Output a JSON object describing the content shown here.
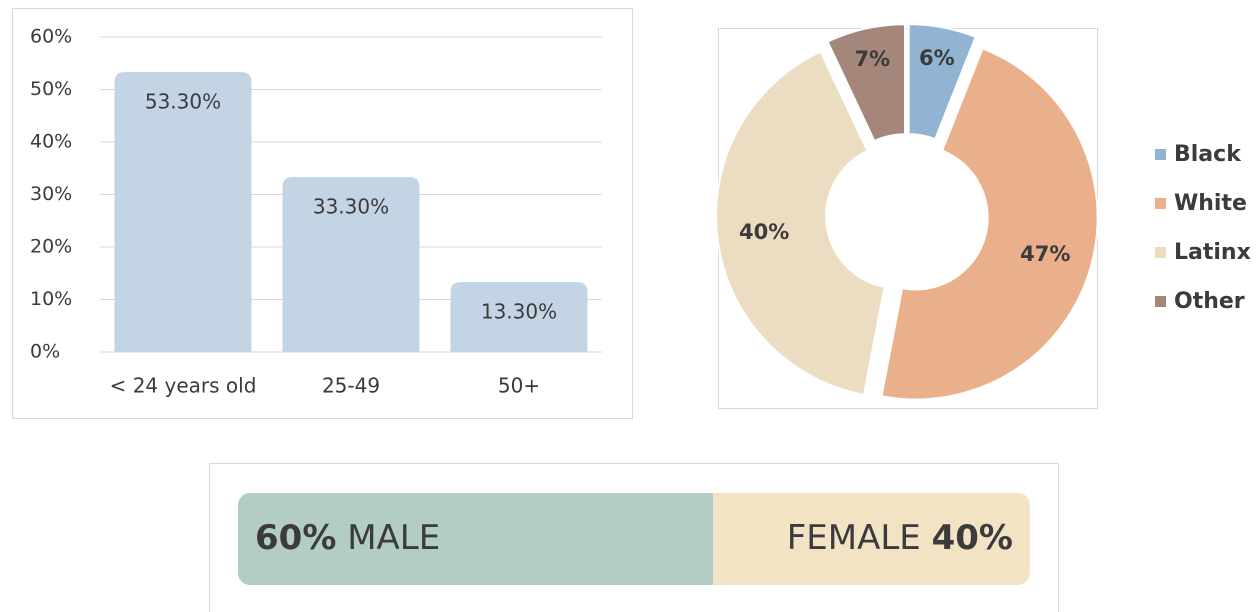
{
  "chart_data": [
    {
      "type": "bar",
      "categories": [
        "< 24 years old",
        "25-49",
        "50+"
      ],
      "values": [
        53.3,
        33.3,
        13.3
      ],
      "value_labels": [
        "53.30%",
        "33.30%",
        "13.30%"
      ],
      "color": "#c3d4e5",
      "ylim": [
        0,
        60
      ],
      "yticks": [
        {
          "value": 0,
          "label": "0%"
        },
        {
          "value": 10,
          "label": "10%"
        },
        {
          "value": 20,
          "label": "20%"
        },
        {
          "value": 30,
          "label": "30%"
        },
        {
          "value": 40,
          "label": "40%"
        },
        {
          "value": 50,
          "label": "50%"
        },
        {
          "value": 60,
          "label": "60%"
        }
      ],
      "grid": true
    },
    {
      "type": "donut",
      "categories": [
        "Black",
        "White",
        "Latinx",
        "Other"
      ],
      "values": [
        6,
        47,
        40,
        7
      ],
      "value_labels": [
        "6%",
        "47%",
        "40%",
        "7%"
      ],
      "colors": [
        "#92b4d3",
        "#eaaf8b",
        "#ecdcc1",
        "#a4877a"
      ],
      "legend": "right"
    },
    {
      "type": "stacked_bar",
      "xlim": [
        0,
        100
      ],
      "series": [
        {
          "name": "MALE",
          "color": "#b3cdc4",
          "values": [
            60
          ],
          "value_labels": [
            "60%"
          ]
        },
        {
          "name": "FEMALE",
          "color": "#f2e3c5",
          "values": [
            40
          ],
          "value_labels": [
            "40%"
          ]
        }
      ]
    }
  ]
}
